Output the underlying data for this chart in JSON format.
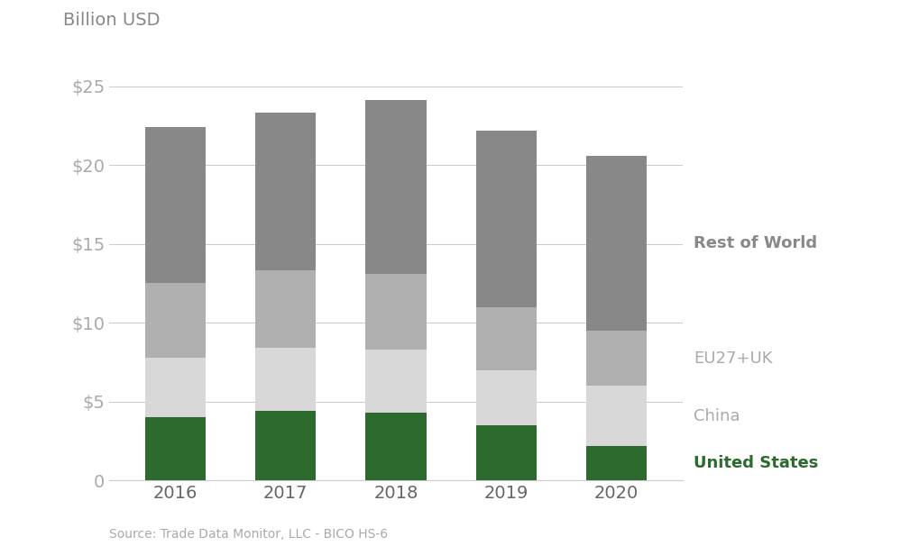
{
  "years": [
    "2016",
    "2017",
    "2018",
    "2019",
    "2020"
  ],
  "series": [
    {
      "label": "United States",
      "values": [
        4.0,
        4.4,
        4.3,
        3.5,
        2.2
      ],
      "color": "#2d6a2d",
      "fontweight": "bold",
      "label_color": "#2d6a2d"
    },
    {
      "label": "China",
      "values": [
        3.8,
        4.0,
        4.0,
        3.5,
        3.8
      ],
      "color": "#d8d8d8",
      "fontweight": "normal",
      "label_color": "#aaaaaa"
    },
    {
      "label": "EU27+UK",
      "values": [
        4.7,
        4.9,
        4.8,
        4.0,
        3.5
      ],
      "color": "#b0b0b0",
      "fontweight": "normal",
      "label_color": "#aaaaaa"
    },
    {
      "label": "Rest of World",
      "values": [
        9.9,
        10.0,
        11.0,
        11.2,
        11.1
      ],
      "color": "#888888",
      "fontweight": "bold",
      "label_color": "#888888"
    }
  ],
  "billion_usd_label": "Billion USD",
  "ylim": [
    0,
    27
  ],
  "yticks": [
    0,
    5,
    10,
    15,
    20,
    25
  ],
  "ytick_labels": [
    "0",
    "$5",
    "$10",
    "$15",
    "$20",
    "$25"
  ],
  "source_text": "Source: Trade Data Monitor, LLC - BICO HS-6",
  "bar_width": 0.55,
  "background_color": "#ffffff",
  "grid_color": "#cccccc",
  "tick_label_color": "#aaaaaa",
  "legend_order": [
    3,
    2,
    1,
    0
  ]
}
